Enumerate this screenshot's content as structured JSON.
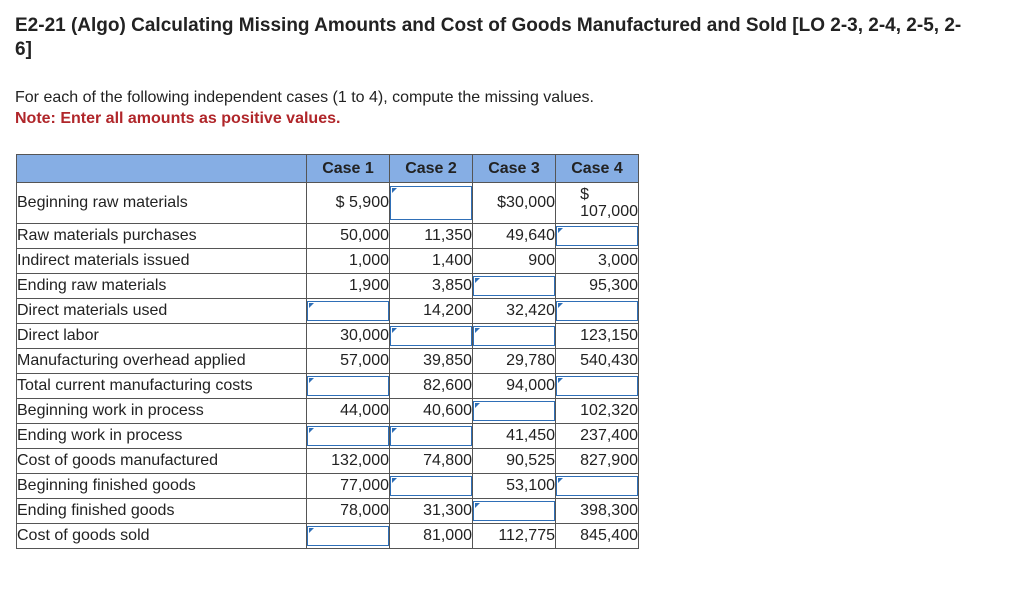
{
  "page": {
    "title": "E2-21 (Algo) Calculating Missing Amounts and Cost of Goods Manufactured and Sold [LO 2-3, 2-4, 2-5, 2-6]",
    "instruction": "For each of the following independent cases (1 to 4), compute the missing values.",
    "note": "Note: Enter all amounts as positive values."
  },
  "table": {
    "headers": [
      "",
      "Case 1",
      "Case 2",
      "Case 3",
      "Case 4"
    ],
    "rows": [
      {
        "label": "Beginning raw materials",
        "cells": [
          "$ 5,900",
          null,
          "$30,000",
          "$\n107,000"
        ]
      },
      {
        "label": "Raw materials purchases",
        "cells": [
          "50,000",
          "11,350",
          "49,640",
          null
        ]
      },
      {
        "label": "Indirect materials issued",
        "cells": [
          "1,000",
          "1,400",
          "900",
          "3,000"
        ]
      },
      {
        "label": "Ending raw materials",
        "cells": [
          "1,900",
          "3,850",
          null,
          "95,300"
        ]
      },
      {
        "label": "Direct materials used",
        "cells": [
          null,
          "14,200",
          "32,420",
          null
        ]
      },
      {
        "label": "Direct labor",
        "cells": [
          "30,000",
          null,
          null,
          "123,150"
        ]
      },
      {
        "label": "Manufacturing overhead applied",
        "cells": [
          "57,000",
          "39,850",
          "29,780",
          "540,430"
        ]
      },
      {
        "label": "Total current manufacturing costs",
        "cells": [
          null,
          "82,600",
          "94,000",
          null
        ]
      },
      {
        "label": "Beginning work in process",
        "cells": [
          "44,000",
          "40,600",
          null,
          "102,320"
        ]
      },
      {
        "label": "Ending work in process",
        "cells": [
          null,
          null,
          "41,450",
          "237,400"
        ]
      },
      {
        "label": "Cost of goods manufactured",
        "cells": [
          "132,000",
          "74,800",
          "90,525",
          "827,900"
        ]
      },
      {
        "label": "Beginning finished goods",
        "cells": [
          "77,000",
          null,
          "53,100",
          null
        ]
      },
      {
        "label": "Ending finished goods",
        "cells": [
          "78,000",
          "31,300",
          null,
          "398,300"
        ]
      },
      {
        "label": "Cost of goods sold",
        "cells": [
          null,
          "81,000",
          "112,775",
          "845,400"
        ]
      }
    ]
  }
}
